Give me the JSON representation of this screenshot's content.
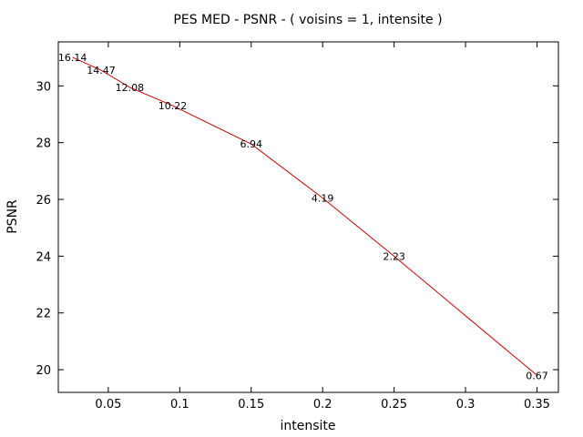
{
  "chart_data": {
    "type": "line",
    "title": "PES MED - PSNR - ( voisins = 1, intensite )",
    "xlabel": "intensite",
    "ylabel": "PSNR",
    "xlim": [
      0.015,
      0.365
    ],
    "ylim": [
      19.2,
      31.55
    ],
    "xticks": [
      {
        "value": 0.05,
        "label": "0.05"
      },
      {
        "value": 0.1,
        "label": "0.1"
      },
      {
        "value": 0.15,
        "label": "0.15"
      },
      {
        "value": 0.2,
        "label": "0.2"
      },
      {
        "value": 0.25,
        "label": "0.25"
      },
      {
        "value": 0.3,
        "label": "0.3"
      },
      {
        "value": 0.35,
        "label": "0.35"
      }
    ],
    "yticks": [
      {
        "value": 20,
        "label": "20"
      },
      {
        "value": 22,
        "label": "22"
      },
      {
        "value": 24,
        "label": "24"
      },
      {
        "value": 26,
        "label": "26"
      },
      {
        "value": 28,
        "label": "28"
      },
      {
        "value": 30,
        "label": "30"
      }
    ],
    "series": [
      {
        "name": "PSNR",
        "color": "#cc0000",
        "x": [
          0.025,
          0.045,
          0.065,
          0.095,
          0.15,
          0.2,
          0.25,
          0.35
        ],
        "y": [
          31.0,
          30.55,
          29.95,
          29.3,
          27.95,
          26.05,
          24.0,
          19.8
        ],
        "labels": [
          "16.14",
          "14.47",
          "12.08",
          "10.22",
          "6.94",
          "4.19",
          "2.23",
          "0.67"
        ]
      }
    ],
    "grid": false,
    "legend": "none"
  }
}
